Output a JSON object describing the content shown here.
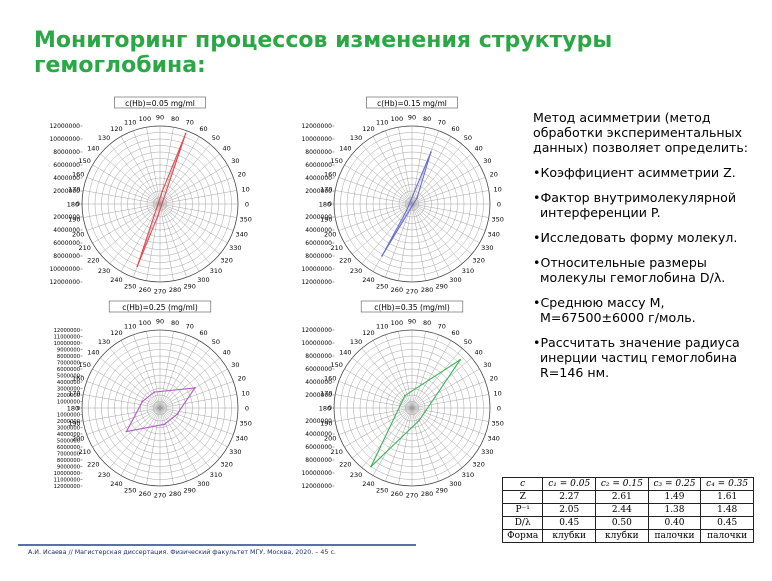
{
  "slide": {
    "title": "Мониторинг процессов изменения  структуры гемоглобина:",
    "footer": "А.И. Исаева  // Магистерская  диссертация.   Физический  факультет  МГУ,  Москва,  2020.   – 45 с."
  },
  "text_panel": {
    "intro": "Метод асимметрии (метод обработки экспериментальных данных) позволяет определить:",
    "bullets": [
      "Коэффициент асимметрии Z.",
      "Фактор внутримолекулярной интерференции P.",
      "Исследовать форму молекул.",
      "Относительные размеры молекулы гемоглобина D/λ.",
      "Среднюю массу M, M=67500±6000 г/моль.",
      "Рассчитать значение радиуса инерции частиц гемоглобина R=146 нм."
    ]
  },
  "table": {
    "header": [
      "c",
      "c₁ = 0.05",
      "c₂ = 0.15",
      "c₃ = 0.25",
      "c₄ = 0.35"
    ],
    "rows": [
      [
        "Z",
        "2.27",
        "2.61",
        "1.49",
        "1.61"
      ],
      [
        "P⁻¹",
        "2.05",
        "2.44",
        "1.38",
        "1.48"
      ],
      [
        "D/λ",
        "0.45",
        "0.50",
        "0.40",
        "0.45"
      ],
      [
        "Форма",
        "клубки",
        "клубки",
        "палочки",
        "палочки"
      ]
    ]
  },
  "colors": {
    "title": "#2aa845",
    "footer": "#1e2e66"
  },
  "chart_data": [
    {
      "type": "polar",
      "title": "c(Hb)=0.05 mg/ml",
      "color": "#e8474c",
      "angle_labels": [
        "0",
        "10",
        "20",
        "30",
        "40",
        "50",
        "60",
        "70",
        "80",
        "90",
        "100",
        "110",
        "120",
        "130",
        "140",
        "150",
        "160",
        "170",
        "180",
        "190",
        "200",
        "210",
        "220",
        "230",
        "240",
        "250",
        "260",
        "270",
        "280",
        "290",
        "300",
        "310",
        "320",
        "330",
        "340",
        "350"
      ],
      "radial_labels": [
        "12000000",
        "10000000",
        "8000000",
        "6000000",
        "4000000",
        "2000000",
        "0",
        "2000000",
        "4000000",
        "6000000",
        "8000000",
        "10000000",
        "12000000"
      ],
      "rmax": 12000000,
      "series": [
        {
          "points": [
            {
              "angle": 70,
              "r": 11500000
            },
            {
              "angle": 80,
              "r": 2000000
            },
            {
              "angle": 250,
              "r": 10200000
            },
            {
              "angle": 260,
              "r": 1800000
            }
          ]
        }
      ]
    },
    {
      "type": "polar",
      "title": "c(Hb)=0.15 mg/ml",
      "color": "#6b6fd1",
      "angle_labels": [
        "0",
        "10",
        "20",
        "30",
        "40",
        "50",
        "60",
        "70",
        "80",
        "90",
        "100",
        "110",
        "120",
        "130",
        "140",
        "150",
        "160",
        "170",
        "180",
        "190",
        "200",
        "210",
        "220",
        "230",
        "240",
        "250",
        "260",
        "270",
        "280",
        "290",
        "300",
        "310",
        "320",
        "330",
        "340",
        "350"
      ],
      "radial_labels": [
        "12000000",
        "10000000",
        "8000000",
        "6000000",
        "4000000",
        "2000000",
        "0",
        "2000000",
        "4000000",
        "6000000",
        "8000000",
        "10000000",
        "12000000"
      ],
      "rmax": 12000000,
      "series": [
        {
          "points": [
            {
              "angle": 70,
              "r": 8500000
            },
            {
              "angle": 50,
              "r": 1200000
            },
            {
              "angle": 240,
              "r": 9200000
            },
            {
              "angle": 230,
              "r": 1300000
            }
          ]
        }
      ]
    },
    {
      "type": "polar",
      "title": "c(Hb)=0.25 (mg/ml)",
      "color": "#b25cc2",
      "angle_labels": [
        "0",
        "10",
        "20",
        "30",
        "40",
        "50",
        "60",
        "70",
        "80",
        "90",
        "100",
        "110",
        "120",
        "130",
        "140",
        "150",
        "160",
        "170",
        "180",
        "190",
        "200",
        "210",
        "220",
        "230",
        "240",
        "250",
        "260",
        "270",
        "280",
        "290",
        "300",
        "310",
        "320",
        "330",
        "340",
        "350"
      ],
      "radial_labels": [
        "12000000",
        "11000000",
        "10000000",
        "9000000",
        "8000000",
        "7000000",
        "6000000",
        "5000000",
        "4000000",
        "3000000",
        "2000000",
        "1000000",
        "0",
        "1000000",
        "2000000",
        "3000000",
        "4000000",
        "5000000",
        "6000000",
        "7000000",
        "8000000",
        "9000000",
        "10000000",
        "11000000",
        "12000000"
      ],
      "rmax": 12000000,
      "series": [
        {
          "points": [
            {
              "angle": 30,
              "r": 6200000
            },
            {
              "angle": 110,
              "r": 2600000
            },
            {
              "angle": 160,
              "r": 2900000
            },
            {
              "angle": 215,
              "r": 6300000
            },
            {
              "angle": 285,
              "r": 2600000
            },
            {
              "angle": 340,
              "r": 2800000
            }
          ]
        }
      ]
    },
    {
      "type": "polar",
      "title": "c(Hb)=0.35 (mg/ml)",
      "color": "#3fb15a",
      "angle_labels": [
        "0",
        "10",
        "20",
        "30",
        "40",
        "50",
        "60",
        "70",
        "80",
        "90",
        "100",
        "110",
        "120",
        "130",
        "140",
        "150",
        "160",
        "170",
        "180",
        "190",
        "200",
        "210",
        "220",
        "230",
        "240",
        "250",
        "260",
        "270",
        "280",
        "290",
        "300",
        "310",
        "320",
        "330",
        "340",
        "350"
      ],
      "radial_labels": [
        "12000000",
        "10000000",
        "8000000",
        "6000000",
        "4000000",
        "2000000",
        "0",
        "2000000",
        "4000000",
        "6000000",
        "8000000",
        "10000000",
        "12000000"
      ],
      "rmax": 12000000,
      "series": [
        {
          "points": [
            {
              "angle": 45,
              "r": 10500000
            },
            {
              "angle": 120,
              "r": 2200000
            },
            {
              "angle": 235,
              "r": 11000000
            },
            {
              "angle": 300,
              "r": 2200000
            }
          ]
        }
      ]
    }
  ]
}
